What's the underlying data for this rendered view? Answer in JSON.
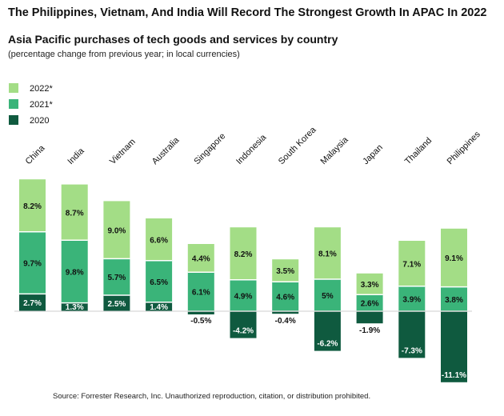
{
  "headline": "The Philippines, Vietnam, And India Will Record The Strongest Growth In APAC In 2022",
  "chart_data": {
    "type": "bar",
    "stacked": true,
    "title": "Asia Pacific purchases of tech goods and services by country",
    "subtitle": "(percentage change from previous year; in local currencies)",
    "categories": [
      "China",
      "India",
      "Vietnam",
      "Australia",
      "Singapore",
      "Indonesia",
      "South Korea",
      "Malaysia",
      "Japan",
      "Thailand",
      "Philippines"
    ],
    "series": [
      {
        "name": "2020",
        "color": "#0f5a3f",
        "values": [
          2.7,
          1.3,
          2.5,
          1.4,
          -0.5,
          -4.2,
          -0.4,
          -6.2,
          -1.9,
          -7.3,
          -11.1
        ],
        "labels": [
          "2.7%",
          "1.3%",
          "2.5%",
          "1.4%",
          "-0.5%",
          "-4.2%",
          "-0.4%",
          "-6.2%",
          "-1.9%",
          "-7.3%",
          "-11.1%"
        ]
      },
      {
        "name": "2021*",
        "color": "#3ab479",
        "values": [
          9.7,
          9.8,
          5.7,
          6.5,
          6.1,
          4.9,
          4.6,
          5,
          2.6,
          3.9,
          3.8
        ],
        "labels": [
          "9.7%",
          "9.8%",
          "5.7%",
          "6.5%",
          "6.1%",
          "4.9%",
          "4.6%",
          "5%",
          "2.6%",
          "3.9%",
          "3.8%"
        ]
      },
      {
        "name": "2022*",
        "color": "#a3dd86",
        "values": [
          8.2,
          8.7,
          9.0,
          6.6,
          4.4,
          8.2,
          3.5,
          8.1,
          3.3,
          7.1,
          9.1
        ],
        "labels": [
          "8.2%",
          "8.7%",
          "9.0%",
          "6.6%",
          "4.4%",
          "8.2%",
          "3.5%",
          "8.1%",
          "3.3%",
          "7.1%",
          "9.1%"
        ]
      }
    ],
    "legend_order": [
      "2022*",
      "2021*",
      "2020"
    ],
    "legend_position": "top-left",
    "grid": false,
    "ylim": [
      -11.1,
      20.6
    ]
  },
  "source": "Source: Forrester Research, Inc. Unauthorized reproduction, citation, or distribution prohibited."
}
